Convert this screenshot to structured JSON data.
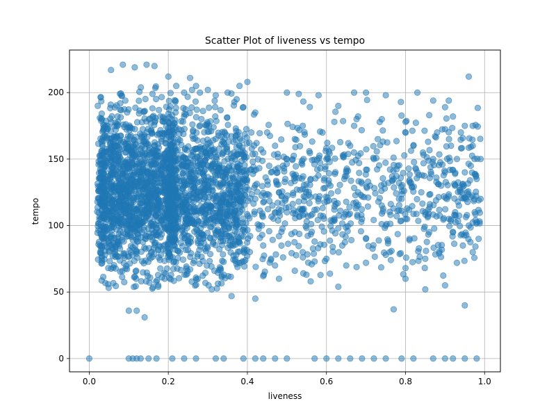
{
  "chart_data": {
    "type": "scatter",
    "title": "Scatter Plot of liveness vs tempo",
    "xlabel": "liveness",
    "ylabel": "tempo",
    "xlim": [
      -0.05,
      1.04
    ],
    "ylim": [
      -10,
      232
    ],
    "x_ticks": [
      0.0,
      0.2,
      0.4,
      0.6,
      0.8,
      1.0
    ],
    "x_tick_labels": [
      "0.0",
      "0.2",
      "0.4",
      "0.6",
      "0.8",
      "1.0"
    ],
    "y_ticks": [
      0,
      50,
      100,
      150,
      200
    ],
    "y_tick_labels": [
      "0",
      "50",
      "100",
      "150",
      "200"
    ],
    "grid": true,
    "legend": "none",
    "marker_color": "#1f77b4",
    "marker_alpha": 0.5,
    "series": [
      {
        "points": [
          [
            0.0,
            0
          ],
          [
            0.1,
            0
          ],
          [
            0.11,
            0
          ],
          [
            0.12,
            0
          ],
          [
            0.13,
            0
          ],
          [
            0.15,
            0
          ],
          [
            0.17,
            0
          ],
          [
            0.21,
            0
          ],
          [
            0.24,
            0
          ],
          [
            0.27,
            0
          ],
          [
            0.32,
            0
          ],
          [
            0.34,
            0
          ],
          [
            0.39,
            0
          ],
          [
            0.42,
            0
          ],
          [
            0.44,
            0
          ],
          [
            0.47,
            0
          ],
          [
            0.5,
            0
          ],
          [
            0.57,
            0
          ],
          [
            0.6,
            0
          ],
          [
            0.63,
            0
          ],
          [
            0.66,
            0
          ],
          [
            0.69,
            0
          ],
          [
            0.72,
            0
          ],
          [
            0.75,
            0
          ],
          [
            0.79,
            0
          ],
          [
            0.82,
            0
          ],
          [
            0.87,
            0
          ],
          [
            0.9,
            0
          ],
          [
            0.92,
            0
          ],
          [
            0.95,
            0
          ],
          [
            0.98,
            0
          ],
          [
            0.055,
            217
          ],
          [
            0.085,
            221
          ],
          [
            0.115,
            219
          ],
          [
            0.145,
            221
          ],
          [
            0.165,
            220
          ],
          [
            0.2,
            212
          ],
          [
            0.255,
            211
          ],
          [
            0.14,
            31
          ],
          [
            0.1,
            36
          ],
          [
            0.12,
            36
          ],
          [
            0.31,
            52
          ],
          [
            0.36,
            47
          ],
          [
            0.42,
            45
          ],
          [
            0.48,
            60
          ],
          [
            0.56,
            58
          ],
          [
            0.63,
            54
          ],
          [
            0.77,
            37
          ],
          [
            0.8,
            60
          ],
          [
            0.85,
            52
          ],
          [
            0.9,
            55
          ],
          [
            0.95,
            40
          ],
          [
            0.96,
            212
          ],
          [
            0.5,
            200
          ],
          [
            0.53,
            199
          ],
          [
            0.58,
            198
          ],
          [
            0.63,
            190
          ],
          [
            0.67,
            200
          ],
          [
            0.7,
            200
          ],
          [
            0.75,
            198
          ],
          [
            0.83,
            200
          ],
          [
            0.87,
            194
          ],
          [
            0.9,
            189
          ],
          [
            0.92,
            182
          ],
          [
            0.97,
            175
          ],
          [
            0.41,
            170
          ],
          [
            0.44,
            155
          ],
          [
            0.46,
            140
          ],
          [
            0.48,
            125
          ],
          [
            0.5,
            110
          ],
          [
            0.52,
            95
          ],
          [
            0.54,
            80
          ],
          [
            0.45,
            170
          ],
          [
            0.47,
            160
          ],
          [
            0.49,
            145
          ],
          [
            0.51,
            132
          ],
          [
            0.53,
            118
          ],
          [
            0.55,
            103
          ],
          [
            0.57,
            88
          ],
          [
            0.42,
            120
          ],
          [
            0.43,
            100
          ],
          [
            0.44,
            85
          ],
          [
            0.46,
            75
          ],
          [
            0.48,
            92
          ],
          [
            0.5,
            150
          ],
          [
            0.52,
            165
          ],
          [
            0.54,
            175
          ],
          [
            0.56,
            135
          ],
          [
            0.58,
            120
          ],
          [
            0.59,
            170
          ],
          [
            0.6,
            150
          ],
          [
            0.61,
            130
          ],
          [
            0.62,
            112
          ],
          [
            0.63,
            98
          ],
          [
            0.64,
            85
          ],
          [
            0.65,
            140
          ],
          [
            0.66,
            160
          ],
          [
            0.67,
            175
          ],
          [
            0.68,
            125
          ],
          [
            0.69,
            105
          ],
          [
            0.7,
            90
          ],
          [
            0.71,
            130
          ],
          [
            0.72,
            150
          ],
          [
            0.73,
            165
          ],
          [
            0.74,
            115
          ],
          [
            0.75,
            100
          ],
          [
            0.76,
            80
          ],
          [
            0.77,
            135
          ],
          [
            0.78,
            145
          ],
          [
            0.79,
            120
          ],
          [
            0.8,
            105
          ],
          [
            0.81,
            90
          ],
          [
            0.82,
            160
          ],
          [
            0.83,
            140
          ],
          [
            0.84,
            125
          ],
          [
            0.85,
            110
          ],
          [
            0.86,
            95
          ],
          [
            0.87,
            150
          ],
          [
            0.88,
            170
          ],
          [
            0.89,
            130
          ],
          [
            0.9,
            140
          ],
          [
            0.905,
            120
          ],
          [
            0.91,
            105
          ],
          [
            0.915,
            160
          ],
          [
            0.92,
            95
          ],
          [
            0.925,
            130
          ],
          [
            0.93,
            150
          ],
          [
            0.935,
            115
          ],
          [
            0.94,
            170
          ],
          [
            0.945,
            85
          ],
          [
            0.95,
            140
          ],
          [
            0.955,
            125
          ],
          [
            0.96,
            100
          ],
          [
            0.965,
            145
          ],
          [
            0.97,
            160
          ],
          [
            0.975,
            110
          ],
          [
            0.98,
            135
          ],
          [
            0.985,
            90
          ],
          [
            0.99,
            120
          ],
          [
            0.99,
            150
          ],
          [
            0.97,
            80
          ],
          [
            0.95,
            175
          ],
          [
            0.93,
            72
          ],
          [
            0.91,
            165
          ],
          [
            0.6,
            75
          ],
          [
            0.65,
            70
          ],
          [
            0.7,
            72
          ],
          [
            0.75,
            78
          ],
          [
            0.8,
            68
          ],
          [
            0.85,
            75
          ],
          [
            0.62,
            178
          ],
          [
            0.68,
            182
          ],
          [
            0.74,
            180
          ],
          [
            0.8,
            178
          ],
          [
            0.86,
            183
          ],
          [
            0.44,
            62
          ],
          [
            0.47,
            70
          ],
          [
            0.52,
            66
          ],
          [
            0.57,
            73
          ],
          [
            0.4,
            208
          ],
          [
            0.42,
            185
          ],
          [
            0.38,
            205
          ],
          [
            0.35,
            200
          ],
          [
            0.3,
            202
          ],
          [
            0.28,
            200
          ],
          [
            0.32,
            198
          ],
          [
            0.24,
            200
          ],
          [
            0.22,
            205
          ],
          [
            0.26,
            202
          ]
        ]
      }
    ]
  }
}
